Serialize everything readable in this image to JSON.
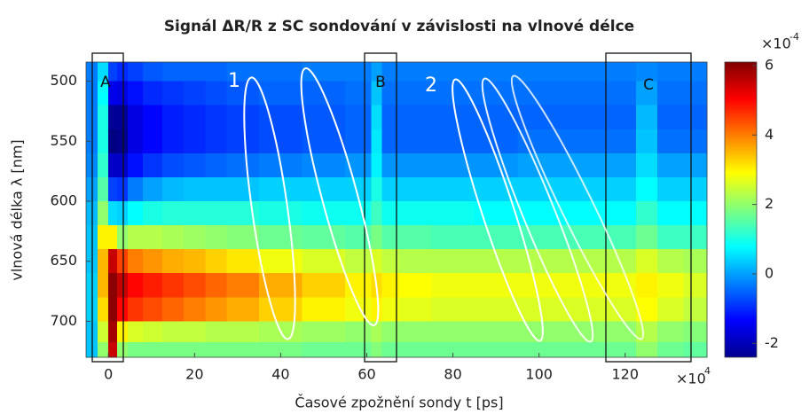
{
  "chart_data": {
    "type": "heatmap",
    "title": "Signál ΔR/R z SC sondování v závislosti na vlnové délce",
    "x_label": "Časové zpožnění sondy t [ps]",
    "y_label": "vlnová délka λ [nm]",
    "x_scale_base": "×10",
    "x_scale_exponent": "4",
    "colorbar_scale_base": "×10",
    "colorbar_scale_exponent": "-4",
    "xlim": [
      -5.2,
      139
    ],
    "xticks": [
      0,
      20,
      40,
      60,
      80,
      100,
      120
    ],
    "ylim": [
      484,
      730
    ],
    "yticks": [
      500,
      550,
      600,
      650,
      700
    ],
    "y_reversed": true,
    "clim": [
      -2.4,
      6.1
    ],
    "cticks": [
      -2,
      0,
      2,
      4,
      6
    ],
    "colormap": "jet",
    "annotations": [
      "A",
      "B",
      "C",
      "1",
      "2"
    ],
    "x": [
      -4,
      -1,
      1,
      3,
      6,
      10,
      15,
      20,
      25,
      30,
      40,
      50,
      60,
      62,
      65,
      70,
      80,
      90,
      100,
      110,
      120,
      125,
      130,
      137
    ],
    "y": [
      490,
      510,
      530,
      550,
      570,
      590,
      610,
      630,
      650,
      670,
      690,
      710,
      725
    ],
    "z": [
      [
        -0.3,
        0.5,
        -0.8,
        -1,
        -0.8,
        -0.6,
        -0.5,
        -0.5,
        -0.5,
        -0.4,
        -0.4,
        -0.3,
        -0.3,
        0,
        -0.3,
        -0.3,
        -0.3,
        -0.3,
        -0.3,
        -0.3,
        -0.3,
        -0.2,
        -0.3,
        -0.3
      ],
      [
        -0.3,
        0.8,
        -1.5,
        -1.6,
        -1.2,
        -1,
        -0.9,
        -0.8,
        -0.7,
        -0.6,
        -0.5,
        -0.5,
        -0.4,
        0.3,
        -0.4,
        -0.4,
        -0.4,
        -0.4,
        -0.4,
        -0.4,
        -0.4,
        0,
        -0.4,
        -0.4
      ],
      [
        -0.3,
        1,
        -2.2,
        -2.2,
        -1.6,
        -1.3,
        -1.1,
        -1,
        -0.9,
        -0.8,
        -0.7,
        -0.6,
        -0.5,
        0.5,
        -0.5,
        -0.5,
        -0.5,
        -0.5,
        -0.5,
        -0.5,
        -0.5,
        0.2,
        -0.5,
        -0.5
      ],
      [
        -0.3,
        1,
        -2.4,
        -2.3,
        -1.6,
        -1.3,
        -1.1,
        -1,
        -0.9,
        -0.8,
        -0.7,
        -0.6,
        -0.5,
        0.6,
        -0.5,
        -0.5,
        -0.5,
        -0.5,
        -0.4,
        -0.4,
        -0.4,
        0.3,
        -0.4,
        -0.4
      ],
      [
        -0.2,
        1.2,
        -1.8,
        -1.8,
        -1.2,
        -0.9,
        -0.7,
        -0.6,
        -0.5,
        -0.4,
        -0.3,
        -0.2,
        -0.1,
        0.7,
        -0.1,
        -0.1,
        -0.1,
        -0.1,
        0,
        0,
        0,
        0.5,
        0,
        0
      ],
      [
        0,
        1.5,
        -0.8,
        -0.9,
        -0.3,
        0,
        0.2,
        0.3,
        0.3,
        0.3,
        0.4,
        0.4,
        0.4,
        1,
        0.4,
        0.4,
        0.4,
        0.4,
        0.4,
        0.4,
        0.4,
        0.8,
        0.4,
        0.4
      ],
      [
        0.2,
        2,
        0.5,
        0.4,
        0.8,
        1,
        1.1,
        1.1,
        1.1,
        1.1,
        1,
        0.9,
        0.9,
        1.3,
        0.9,
        0.9,
        0.9,
        0.8,
        0.8,
        0.8,
        0.8,
        1.2,
        0.8,
        0.8
      ],
      [
        0.3,
        3,
        3,
        2,
        2.3,
        2.3,
        2.2,
        2.1,
        2,
        1.9,
        1.7,
        1.6,
        1.5,
        1.8,
        1.5,
        1.5,
        1.4,
        1.4,
        1.4,
        1.4,
        1.4,
        1.7,
        1.3,
        1.3
      ],
      [
        0.3,
        3.5,
        5.5,
        4.5,
        4,
        3.8,
        3.6,
        3.5,
        3.3,
        3.1,
        2.8,
        2.6,
        2.4,
        2.6,
        2.4,
        2.3,
        2.3,
        2.3,
        2.3,
        2.3,
        2.3,
        2.6,
        2.3,
        2.2
      ],
      [
        0.4,
        3.5,
        6,
        5.5,
        5,
        4.8,
        4.6,
        4.4,
        4.2,
        4,
        3.6,
        3.3,
        3,
        3.2,
        3,
        2.9,
        2.8,
        2.8,
        2.8,
        2.8,
        2.8,
        3,
        2.8,
        2.6
      ],
      [
        0.4,
        3.2,
        6,
        5,
        4.6,
        4.4,
        4.2,
        4,
        3.8,
        3.6,
        3.3,
        3,
        2.8,
        3,
        2.8,
        2.7,
        2.6,
        2.6,
        2.6,
        2.6,
        2.6,
        2.9,
        2.6,
        2.4
      ],
      [
        0.3,
        2.5,
        5.8,
        3,
        2.6,
        2.5,
        2.4,
        2.4,
        2.3,
        2.3,
        2.2,
        2.1,
        2,
        2.2,
        2,
        2,
        2,
        2,
        2,
        2,
        2,
        2.3,
        2,
        1.9
      ],
      [
        0.3,
        2,
        5.5,
        2,
        1.8,
        1.8,
        1.8,
        1.8,
        1.8,
        1.8,
        1.8,
        1.7,
        1.7,
        1.9,
        1.7,
        1.7,
        1.7,
        1.7,
        1.7,
        1.7,
        1.7,
        2,
        1.7,
        1.6
      ]
    ]
  }
}
